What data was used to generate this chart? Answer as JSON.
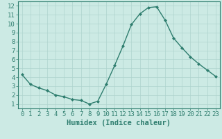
{
  "x": [
    0,
    1,
    2,
    3,
    4,
    5,
    6,
    7,
    8,
    9,
    10,
    11,
    12,
    13,
    14,
    15,
    16,
    17,
    18,
    19,
    20,
    21,
    22,
    23
  ],
  "y": [
    4.3,
    3.2,
    2.8,
    2.5,
    2.0,
    1.8,
    1.5,
    1.4,
    1.0,
    1.3,
    3.2,
    5.3,
    7.5,
    9.9,
    11.1,
    11.8,
    11.9,
    10.4,
    8.4,
    7.3,
    6.3,
    5.5,
    4.8,
    4.1
  ],
  "line_color": "#2e7d6e",
  "marker": "D",
  "marker_size": 2.0,
  "bg_color": "#cceae4",
  "grid_color": "#aed4ce",
  "xlabel": "Humidex (Indice chaleur)",
  "xlim": [
    -0.5,
    23.5
  ],
  "ylim": [
    0.5,
    12.5
  ],
  "yticks": [
    1,
    2,
    3,
    4,
    5,
    6,
    7,
    8,
    9,
    10,
    11,
    12
  ],
  "xticks": [
    0,
    1,
    2,
    3,
    4,
    5,
    6,
    7,
    8,
    9,
    10,
    11,
    12,
    13,
    14,
    15,
    16,
    17,
    18,
    19,
    20,
    21,
    22,
    23
  ],
  "tick_color": "#2e7d6e",
  "axis_color": "#2e7d6e",
  "xlabel_color": "#2e7d6e",
  "xlabel_fontsize": 7.5,
  "tick_fontsize": 6.5,
  "line_width": 1.0
}
